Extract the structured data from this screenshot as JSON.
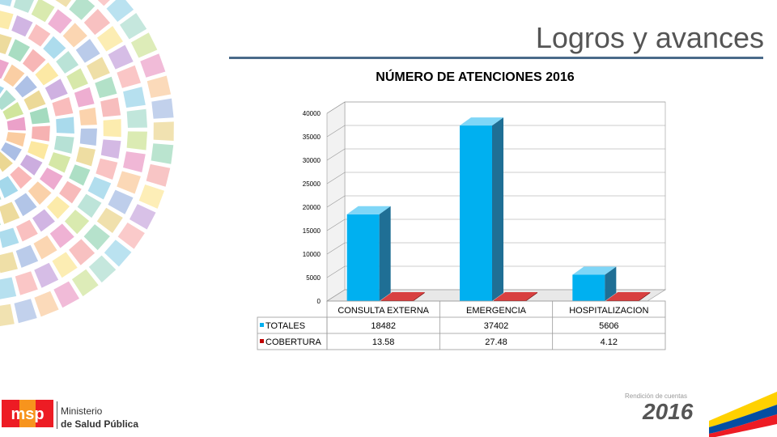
{
  "slide": {
    "title": "Logros y avances"
  },
  "chart_data": {
    "type": "bar",
    "title": "NÚMERO DE ATENCIONES 2016",
    "categories": [
      "CONSULTA EXTERNA",
      "EMERGENCIA",
      "HOSPITALIZACION"
    ],
    "series": [
      {
        "name": "TOTALES",
        "values": [
          18482,
          37402,
          5606
        ],
        "labels": [
          "18482",
          "37402",
          "5606"
        ],
        "color": "#00b0f0"
      },
      {
        "name": "COBERTURA",
        "values": [
          13.58,
          27.48,
          4.12
        ],
        "labels": [
          "13.58",
          "27.48",
          "4.12"
        ],
        "color": "#c00000"
      }
    ],
    "ylim": [
      0,
      40000
    ],
    "yticks": [
      0,
      5000,
      10000,
      15000,
      20000,
      25000,
      30000,
      35000,
      40000
    ],
    "grid": true,
    "legend": "data-table"
  },
  "logos": {
    "ministry_line1": "Ministerio",
    "ministry_line2": "de Salud Pública",
    "msp_letters": "msp",
    "rc_small": "Rendición de cuentas",
    "rc_year": "2016"
  },
  "colors": {
    "accent_blue": "#00b0f0",
    "accent_red": "#c00000",
    "flag_yellow": "#ffd100",
    "flag_blue": "#034ea2",
    "flag_red": "#ed1c24"
  }
}
